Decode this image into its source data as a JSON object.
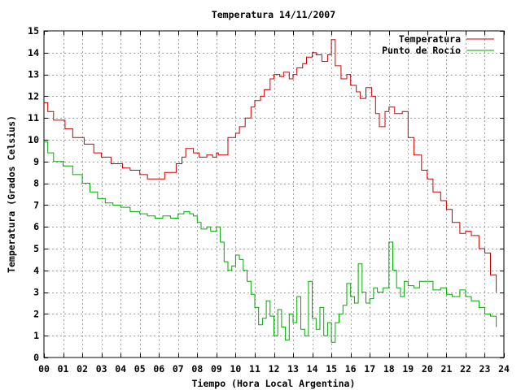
{
  "chart_data": {
    "type": "line",
    "title": "Temperatura 14/11/2007",
    "xlabel": "Tiempo (Hora Local Argentina)",
    "ylabel": "Temperatura (Grados Celsius)",
    "xlim": [
      0,
      24
    ],
    "ylim": [
      0,
      15
    ],
    "x_ticks": [
      0,
      1,
      2,
      3,
      4,
      5,
      6,
      7,
      8,
      9,
      10,
      11,
      12,
      13,
      14,
      15,
      16,
      17,
      18,
      19,
      20,
      21,
      22,
      23,
      24
    ],
    "x_tick_labels": [
      "00",
      "01",
      "02",
      "03",
      "04",
      "05",
      "06",
      "07",
      "08",
      "09",
      "10",
      "11",
      "12",
      "13",
      "14",
      "15",
      "16",
      "17",
      "18",
      "19",
      "20",
      "21",
      "22",
      "23",
      "24"
    ],
    "y_ticks": [
      0,
      1,
      2,
      3,
      4,
      5,
      6,
      7,
      8,
      9,
      10,
      11,
      12,
      13,
      14,
      15
    ],
    "y_tick_labels": [
      "0",
      "1",
      "2",
      "3",
      "4",
      "5",
      "6",
      "7",
      "8",
      "9",
      "10",
      "11",
      "12",
      "13",
      "14",
      "15"
    ],
    "grid": true,
    "legend_position": "top-right",
    "series": [
      {
        "name": "Temperatura",
        "color": "#cc0000",
        "x": [
          0.0,
          0.2,
          0.5,
          1.1,
          1.5,
          2.1,
          2.6,
          3.0,
          3.5,
          4.1,
          4.5,
          5.0,
          5.4,
          5.9,
          6.3,
          6.9,
          7.2,
          7.4,
          7.8,
          8.1,
          8.5,
          8.8,
          9.0,
          9.1,
          9.6,
          10.0,
          10.2,
          10.5,
          10.8,
          11.0,
          11.3,
          11.5,
          11.8,
          12.0,
          12.3,
          12.5,
          12.8,
          13.0,
          13.2,
          13.5,
          13.7,
          14.0,
          14.2,
          14.5,
          14.8,
          15.0,
          15.2,
          15.5,
          15.8,
          16.0,
          16.3,
          16.5,
          16.8,
          17.1,
          17.3,
          17.5,
          17.8,
          18.0,
          18.3,
          18.7,
          19.0,
          19.3,
          19.7,
          20.0,
          20.3,
          20.7,
          21.0,
          21.3,
          21.7,
          22.0,
          22.3,
          22.7,
          23.0,
          23.3,
          23.6
        ],
        "values": [
          11.7,
          11.3,
          10.9,
          10.5,
          10.1,
          9.8,
          9.4,
          9.2,
          8.9,
          8.7,
          8.6,
          8.4,
          8.2,
          8.2,
          8.5,
          8.9,
          9.2,
          9.6,
          9.4,
          9.2,
          9.3,
          9.2,
          9.4,
          9.3,
          10.1,
          10.3,
          10.6,
          11.0,
          11.5,
          11.8,
          12.0,
          12.3,
          12.8,
          13.0,
          12.9,
          13.1,
          12.8,
          13.0,
          13.3,
          13.5,
          13.8,
          14.0,
          13.9,
          13.6,
          13.9,
          14.6,
          13.4,
          12.8,
          13.0,
          12.5,
          12.2,
          11.9,
          12.4,
          12.0,
          11.2,
          10.6,
          11.3,
          11.5,
          11.2,
          11.3,
          10.1,
          9.3,
          8.6,
          8.2,
          7.6,
          7.2,
          6.8,
          6.2,
          5.7,
          5.8,
          5.6,
          5.0,
          4.8,
          3.8,
          3.0
        ]
      },
      {
        "name": "Punto de Rocío",
        "color": "#00aa00",
        "x": [
          0.0,
          0.2,
          0.5,
          1.0,
          1.5,
          2.0,
          2.4,
          2.8,
          3.2,
          3.6,
          4.0,
          4.5,
          5.0,
          5.4,
          5.8,
          6.2,
          6.6,
          7.0,
          7.3,
          7.6,
          7.8,
          8.0,
          8.2,
          8.5,
          8.7,
          9.0,
          9.2,
          9.4,
          9.6,
          9.8,
          10.0,
          10.2,
          10.4,
          10.6,
          10.8,
          11.0,
          11.2,
          11.4,
          11.6,
          11.8,
          12.0,
          12.2,
          12.4,
          12.6,
          12.8,
          13.0,
          13.2,
          13.4,
          13.6,
          13.8,
          14.0,
          14.2,
          14.4,
          14.6,
          14.8,
          15.0,
          15.2,
          15.4,
          15.6,
          15.8,
          16.0,
          16.2,
          16.4,
          16.6,
          16.8,
          17.0,
          17.2,
          17.4,
          17.7,
          18.0,
          18.2,
          18.4,
          18.6,
          18.8,
          19.0,
          19.3,
          19.6,
          20.0,
          20.3,
          20.7,
          21.0,
          21.3,
          21.7,
          22.0,
          22.3,
          22.7,
          23.0,
          23.3,
          23.6
        ],
        "values": [
          9.9,
          9.4,
          9.0,
          8.8,
          8.4,
          8.0,
          7.6,
          7.3,
          7.1,
          7.0,
          6.9,
          6.7,
          6.6,
          6.5,
          6.4,
          6.5,
          6.4,
          6.6,
          6.7,
          6.6,
          6.5,
          6.2,
          5.9,
          6.0,
          5.8,
          6.0,
          5.3,
          4.4,
          4.0,
          4.2,
          4.7,
          4.5,
          4.0,
          3.5,
          2.9,
          2.3,
          1.5,
          1.8,
          2.6,
          1.9,
          1.0,
          2.2,
          1.4,
          0.8,
          2.0,
          1.6,
          2.8,
          1.3,
          1.0,
          3.5,
          1.8,
          1.3,
          2.3,
          1.0,
          1.6,
          0.7,
          1.6,
          2.0,
          2.4,
          3.4,
          2.8,
          2.5,
          4.3,
          3.0,
          2.5,
          2.7,
          3.2,
          3.0,
          3.2,
          5.3,
          4.0,
          3.2,
          2.8,
          3.5,
          3.3,
          3.2,
          3.5,
          3.5,
          3.1,
          3.2,
          2.9,
          2.8,
          3.1,
          2.8,
          2.6,
          2.3,
          2.0,
          1.9,
          1.4
        ]
      }
    ]
  }
}
